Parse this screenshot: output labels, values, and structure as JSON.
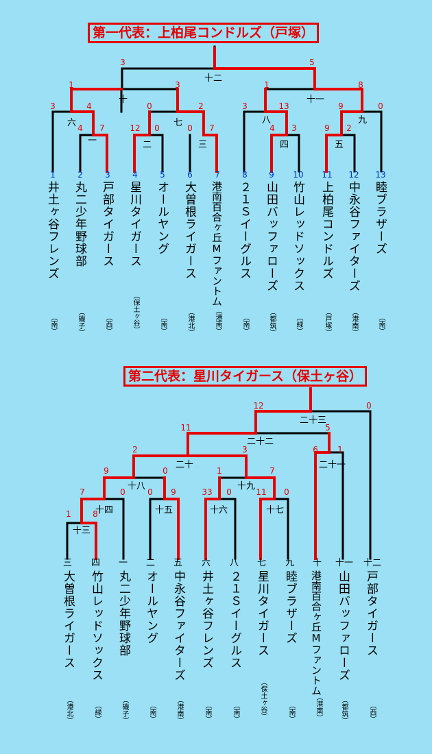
{
  "bracket1": {
    "title": "第一代表：上柏尾コンドルズ（戸塚）",
    "teams": [
      {
        "seed": "1",
        "name": "井土ヶ谷フレンズ",
        "area": "（南）"
      },
      {
        "seed": "2",
        "name": "丸二少年野球部",
        "area": "（磯子）"
      },
      {
        "seed": "3",
        "name": "戸部タイガース",
        "area": "（西）"
      },
      {
        "seed": "4",
        "name": "星川タイガース",
        "area": "（保土ヶ谷）"
      },
      {
        "seed": "5",
        "name": "オールヤング",
        "area": "（南）"
      },
      {
        "seed": "6",
        "name": "大曽根ライガース",
        "area": "（港北）"
      },
      {
        "seed": "7",
        "name": "港南百合ヶ丘Mファントム",
        "area": "（港南）"
      },
      {
        "seed": "8",
        "name": "２１Ｓイーグルス",
        "area": "（南）"
      },
      {
        "seed": "9",
        "name": "山田バッファローズ",
        "area": "（都筑）"
      },
      {
        "seed": "10",
        "name": "竹山レッドソックス",
        "area": "（緑）"
      },
      {
        "seed": "11",
        "name": "上柏尾コンドルズ",
        "area": "（戸塚）"
      },
      {
        "seed": "12",
        "name": "中永谷ファイターズ",
        "area": "（港南）"
      },
      {
        "seed": "13",
        "name": "睦ブラザーズ",
        "area": "（南）"
      }
    ],
    "games": [
      "一",
      "二",
      "三",
      "四",
      "五",
      "六",
      "七",
      "八",
      "九",
      "十",
      "十一",
      "十二"
    ],
    "scores": [
      "3",
      "4",
      "4",
      "7",
      "1",
      "12",
      "0",
      "0",
      "2",
      "0",
      "7",
      "3",
      "3",
      "1",
      "13",
      "4",
      "3",
      "9",
      "9",
      "2",
      "8",
      "0",
      "5"
    ]
  },
  "bracket2": {
    "title": "第二代表：星川タイガース（保土ヶ谷）",
    "teams": [
      {
        "slot": "三",
        "name": "大曽根ライガース",
        "area": "（港北）"
      },
      {
        "slot": "四",
        "name": "竹山レッドソックス",
        "area": "（緑）"
      },
      {
        "slot": "一",
        "name": "丸二少年野球部",
        "area": "（磯子）"
      },
      {
        "slot": "二",
        "name": "オールヤング",
        "area": "（南）"
      },
      {
        "slot": "五",
        "name": "中永谷ファイターズ",
        "area": "（港南）"
      },
      {
        "slot": "六",
        "name": "井土ヶ谷フレンズ",
        "area": "（南）"
      },
      {
        "slot": "八",
        "name": "２１Ｓイーグルス",
        "area": "（南）"
      },
      {
        "slot": "七",
        "name": "星川タイガース",
        "area": "（保土ヶ谷）"
      },
      {
        "slot": "九",
        "name": "睦ブラザーズ",
        "area": "（南）"
      },
      {
        "slot": "十",
        "name": "港南百合ヶ丘Mファントム",
        "area": "（港南）"
      },
      {
        "slot": "十一",
        "name": "山田バッファローズ",
        "area": "（都筑）"
      },
      {
        "slot": "十二",
        "name": "戸部タイガース",
        "area": "（西）"
      }
    ],
    "games": [
      "十三",
      "十四",
      "十五",
      "十六",
      "十七",
      "十八",
      "十九",
      "二十",
      "二十一",
      "二十二",
      "二十三"
    ],
    "scores": [
      "1",
      "8",
      "7",
      "0",
      "9",
      "0",
      "9",
      "2",
      "0",
      "8",
      "33",
      "0",
      "1",
      "11",
      "0",
      "7",
      "3",
      "11",
      "6",
      "1",
      "5",
      "12",
      "0"
    ]
  },
  "colors": {
    "background": "#9be0f4",
    "winner_line": "#e60000",
    "line": "#000000",
    "seed": "#0033cc",
    "score": "#e60000"
  }
}
